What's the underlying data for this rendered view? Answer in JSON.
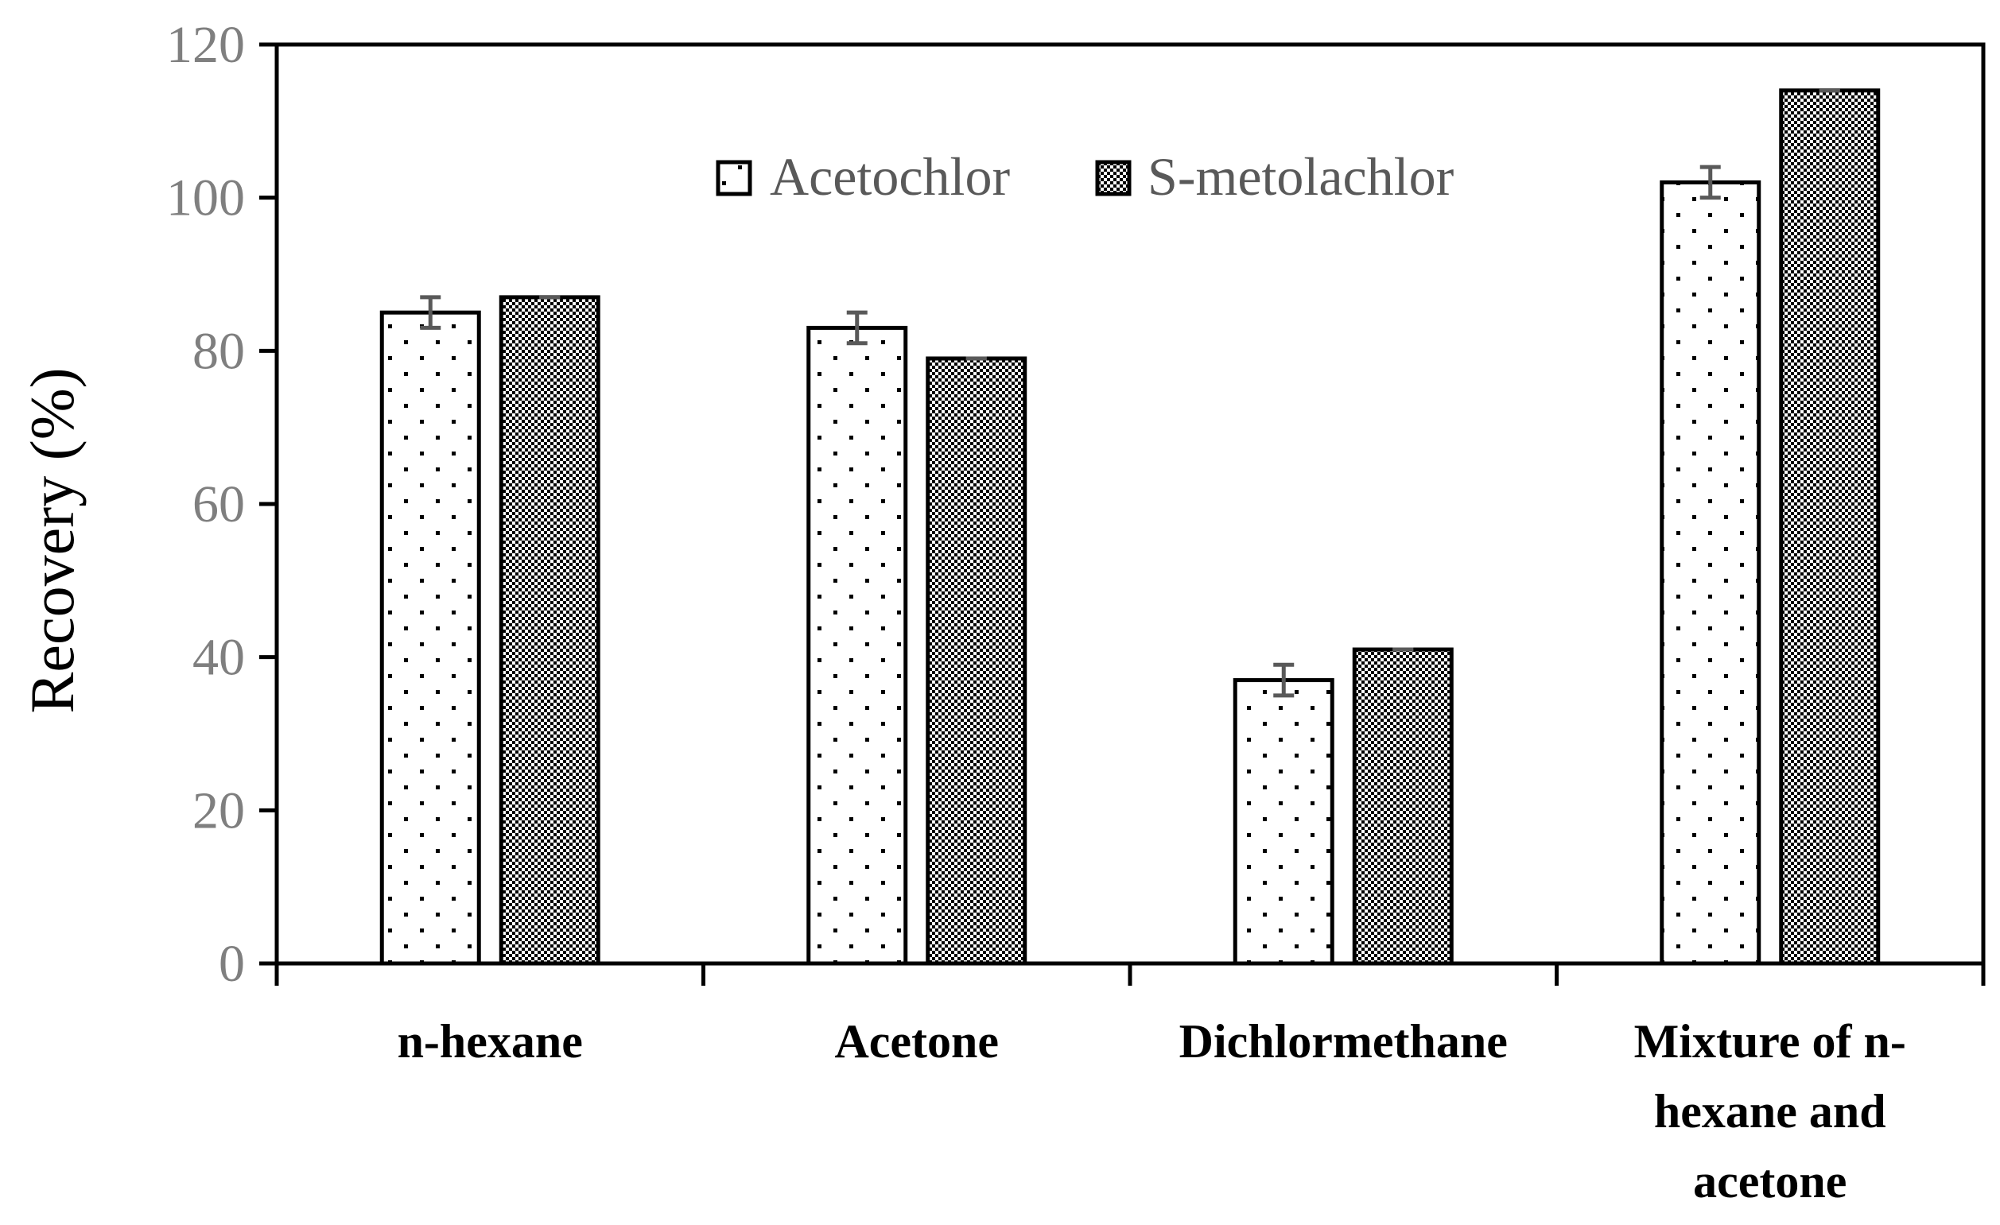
{
  "chart_data": {
    "type": "bar",
    "title": "",
    "xlabel": "",
    "ylabel": "Recovery  (%)",
    "ylim": [
      0,
      120
    ],
    "yticks": [
      0,
      20,
      40,
      60,
      80,
      100,
      120
    ],
    "categories": [
      [
        "n-hexane"
      ],
      [
        "Acetone"
      ],
      [
        "Dichlormethane"
      ],
      [
        "Mixture of n-",
        "hexane and",
        "acetone"
      ]
    ],
    "series": [
      {
        "name": "Acetochlor",
        "pattern": "sparse-dots",
        "values": [
          85,
          83,
          37,
          102
        ],
        "errors": [
          2,
          2,
          2,
          2
        ]
      },
      {
        "name": "S-metolachlor",
        "pattern": "dense-checker",
        "values": [
          87,
          79,
          41,
          114
        ],
        "errors": [
          0,
          0,
          0,
          0
        ]
      }
    ],
    "grid": false,
    "legend_position": "top-center"
  },
  "colors": {
    "axis": "#000000",
    "tick_text": "#7f7f7f",
    "legend_text": "#595959",
    "error_bar": "#595959",
    "bar_fill": "#ffffff",
    "bar_stroke": "#000000"
  }
}
